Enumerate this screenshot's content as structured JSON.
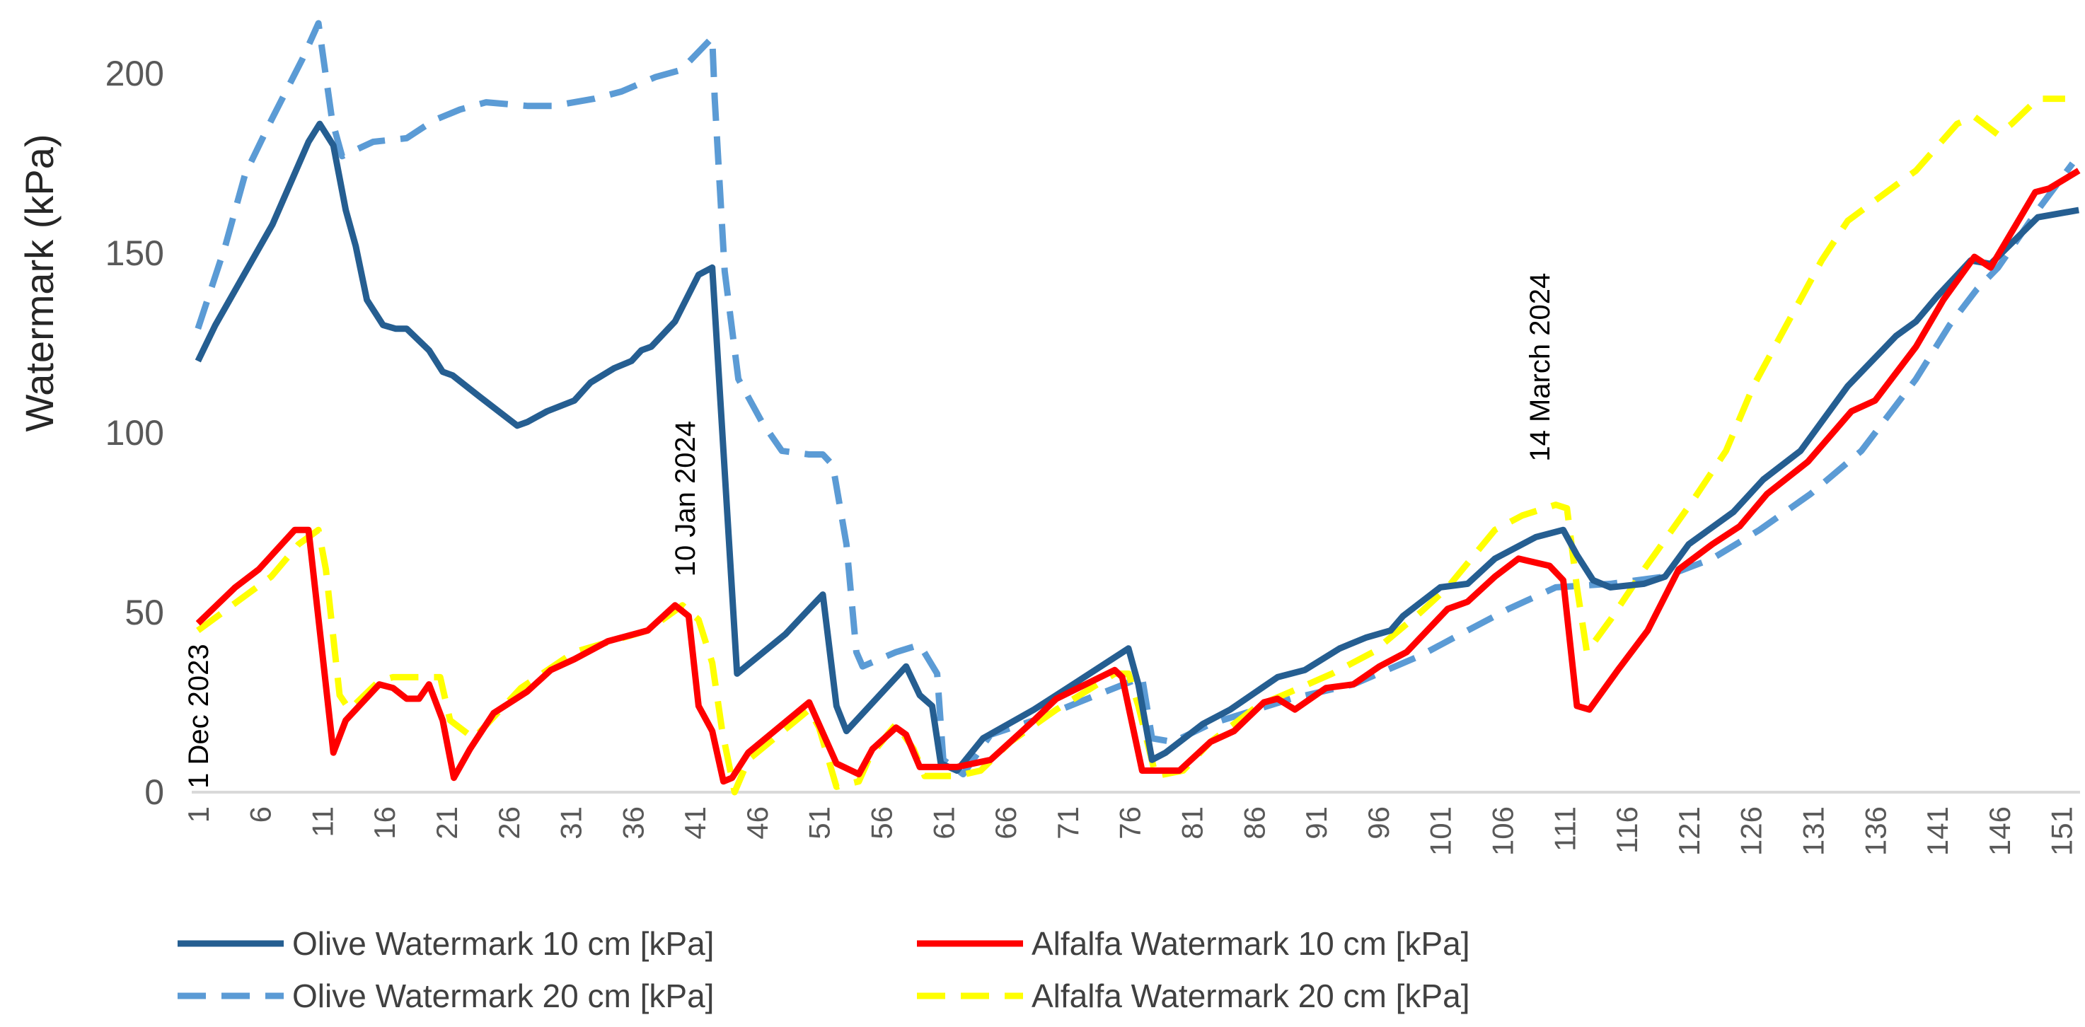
{
  "chart_data": {
    "type": "line",
    "title": "",
    "xlabel": "",
    "ylabel": "Watermark (kPa)",
    "xlim": [
      0.5,
      152.5
    ],
    "ylim": [
      0,
      218
    ],
    "yticks": [
      0,
      50,
      100,
      150,
      200
    ],
    "xticks": [
      1,
      6,
      11,
      16,
      21,
      26,
      31,
      36,
      41,
      46,
      51,
      56,
      61,
      66,
      71,
      76,
      81,
      86,
      91,
      96,
      101,
      106,
      111,
      116,
      121,
      126,
      131,
      136,
      141,
      146,
      151
    ],
    "grid": false,
    "legend_position": "bottom",
    "annotations": [
      {
        "text": "1 Dec 2023",
        "x": 1,
        "y": 1
      },
      {
        "text": "10 Jan 2024",
        "x": 40.2,
        "y": 60
      },
      {
        "text": "14 March 2024",
        "x": 109,
        "y": 92
      }
    ],
    "series": [
      {
        "name": "Olive Watermark 10 cm [kPa]",
        "color": "#255E91",
        "dash": "solid",
        "points": [
          [
            1,
            120
          ],
          [
            2.4,
            130
          ],
          [
            7,
            158
          ],
          [
            9.9,
            181
          ],
          [
            10.8,
            186
          ],
          [
            11.9,
            180
          ],
          [
            12.9,
            162
          ],
          [
            13.7,
            152
          ],
          [
            14.6,
            137
          ],
          [
            15.9,
            130
          ],
          [
            16.9,
            129
          ],
          [
            17.8,
            129
          ],
          [
            19.6,
            123
          ],
          [
            20.7,
            117
          ],
          [
            21.5,
            116
          ],
          [
            23.7,
            110
          ],
          [
            26.7,
            102
          ],
          [
            27.5,
            103
          ],
          [
            29.1,
            106
          ],
          [
            31.3,
            109
          ],
          [
            32.6,
            114
          ],
          [
            34.5,
            118
          ],
          [
            35.9,
            120
          ],
          [
            36.7,
            123
          ],
          [
            37.5,
            124
          ],
          [
            39.4,
            131
          ],
          [
            41.3,
            144
          ],
          [
            42.4,
            146
          ],
          [
            44.4,
            33
          ],
          [
            48.3,
            44
          ],
          [
            50.2,
            51
          ],
          [
            51.3,
            55
          ],
          [
            52.4,
            24
          ],
          [
            53.2,
            17
          ],
          [
            58,
            35
          ],
          [
            59.1,
            27
          ],
          [
            60.1,
            24
          ],
          [
            60.8,
            8
          ],
          [
            62.1,
            6
          ],
          [
            64.2,
            15
          ],
          [
            68.3,
            23
          ],
          [
            71,
            29
          ],
          [
            75.9,
            40
          ],
          [
            76.7,
            30
          ],
          [
            77.8,
            9
          ],
          [
            78.9,
            11
          ],
          [
            81.9,
            19
          ],
          [
            84.1,
            23
          ],
          [
            87.9,
            32
          ],
          [
            90.1,
            34
          ],
          [
            92.9,
            40
          ],
          [
            95,
            43
          ],
          [
            97,
            45
          ],
          [
            98,
            49
          ],
          [
            101,
            57
          ],
          [
            103.2,
            58
          ],
          [
            105.4,
            65
          ],
          [
            108.7,
            71
          ],
          [
            110.9,
            73
          ],
          [
            112,
            66
          ],
          [
            113.3,
            59
          ],
          [
            114.7,
            57
          ],
          [
            117.4,
            58
          ],
          [
            119.1,
            60
          ],
          [
            121,
            69
          ],
          [
            124.6,
            78
          ],
          [
            127,
            87
          ],
          [
            130,
            95
          ],
          [
            133.8,
            113
          ],
          [
            137.7,
            127
          ],
          [
            139.3,
            131
          ],
          [
            141,
            138
          ],
          [
            143.7,
            148
          ],
          [
            145.3,
            147
          ],
          [
            149.1,
            160
          ],
          [
            152.4,
            162
          ]
        ]
      },
      {
        "name": "Alfalfa Watermark 10 cm  [kPa]",
        "color": "#FF0000",
        "dash": "solid",
        "points": [
          [
            1,
            47
          ],
          [
            4,
            57
          ],
          [
            5.9,
            62
          ],
          [
            8.8,
            73
          ],
          [
            9.9,
            73
          ],
          [
            11,
            39
          ],
          [
            11.9,
            11
          ],
          [
            12.9,
            20
          ],
          [
            15.6,
            30
          ],
          [
            16.7,
            29
          ],
          [
            17.8,
            26
          ],
          [
            18.8,
            26
          ],
          [
            19.6,
            30
          ],
          [
            20.7,
            20
          ],
          [
            21.6,
            4
          ],
          [
            22.9,
            12
          ],
          [
            24.8,
            22
          ],
          [
            27.5,
            28
          ],
          [
            29.4,
            34
          ],
          [
            31.3,
            37
          ],
          [
            34,
            42
          ],
          [
            37.2,
            45
          ],
          [
            39.4,
            52
          ],
          [
            40.5,
            49
          ],
          [
            41.3,
            24
          ],
          [
            42.4,
            17
          ],
          [
            43.3,
            3
          ],
          [
            44,
            4
          ],
          [
            45.3,
            11
          ],
          [
            50.2,
            25
          ],
          [
            52.4,
            8
          ],
          [
            54.2,
            5
          ],
          [
            55.3,
            12
          ],
          [
            57.2,
            18
          ],
          [
            58,
            16
          ],
          [
            59.1,
            7
          ],
          [
            62.1,
            7
          ],
          [
            64.8,
            9
          ],
          [
            68.3,
            20
          ],
          [
            70.1,
            26
          ],
          [
            74.8,
            34
          ],
          [
            75.4,
            32
          ],
          [
            77,
            6
          ],
          [
            80,
            6
          ],
          [
            82.5,
            14
          ],
          [
            84.4,
            17
          ],
          [
            86.8,
            25
          ],
          [
            87.9,
            26
          ],
          [
            89.3,
            23
          ],
          [
            91.8,
            29
          ],
          [
            94,
            30
          ],
          [
            96.1,
            35
          ],
          [
            98.3,
            39
          ],
          [
            101.6,
            51
          ],
          [
            103.2,
            53
          ],
          [
            105.4,
            60
          ],
          [
            107.3,
            65
          ],
          [
            109.8,
            63
          ],
          [
            110.9,
            59
          ],
          [
            112,
            24
          ],
          [
            113,
            23
          ],
          [
            115.3,
            34
          ],
          [
            117.7,
            45
          ],
          [
            120.2,
            62
          ],
          [
            122.9,
            69
          ],
          [
            125.1,
            74
          ],
          [
            127.3,
            83
          ],
          [
            130.6,
            92
          ],
          [
            134.1,
            106
          ],
          [
            136,
            109
          ],
          [
            138.2,
            119
          ],
          [
            139.3,
            124
          ],
          [
            141.5,
            137
          ],
          [
            144,
            149
          ],
          [
            145.3,
            146
          ],
          [
            148.9,
            167
          ],
          [
            150,
            168
          ],
          [
            152.4,
            173
          ]
        ]
      },
      {
        "name": "Olive Watermark 20 cm [kPa]",
        "color": "#5B9BD5",
        "dash": "dashed",
        "points": [
          [
            1,
            129
          ],
          [
            3.2,
            152
          ],
          [
            4.8,
            172
          ],
          [
            6.9,
            187
          ],
          [
            9.4,
            204
          ],
          [
            10.7,
            214
          ],
          [
            11.8,
            187
          ],
          [
            12.6,
            177
          ],
          [
            15.1,
            181
          ],
          [
            17.8,
            182
          ],
          [
            20,
            187
          ],
          [
            22.1,
            190
          ],
          [
            24.2,
            192
          ],
          [
            27.5,
            191
          ],
          [
            29.6,
            191
          ],
          [
            32.9,
            193
          ],
          [
            35.1,
            195
          ],
          [
            37.8,
            199
          ],
          [
            39.9,
            201
          ],
          [
            42.4,
            210
          ],
          [
            42.6,
            193
          ],
          [
            43.4,
            145
          ],
          [
            44.5,
            115
          ],
          [
            46.4,
            103
          ],
          [
            48,
            95
          ],
          [
            50.2,
            94
          ],
          [
            51.3,
            94
          ],
          [
            52.1,
            91
          ],
          [
            53.2,
            69
          ],
          [
            54,
            39
          ],
          [
            54.5,
            35
          ],
          [
            57.2,
            39
          ],
          [
            59.1,
            41
          ],
          [
            60.5,
            33
          ],
          [
            61,
            9
          ],
          [
            62.6,
            5
          ],
          [
            64.8,
            16
          ],
          [
            68.3,
            20
          ],
          [
            72.6,
            26
          ],
          [
            77,
            32
          ],
          [
            77.8,
            15
          ],
          [
            79.5,
            14
          ],
          [
            82.5,
            19
          ],
          [
            89,
            26
          ],
          [
            94,
            30
          ],
          [
            99.4,
            38
          ],
          [
            102.1,
            43
          ],
          [
            106.5,
            51
          ],
          [
            110.3,
            57
          ],
          [
            114.7,
            58
          ],
          [
            119.1,
            60
          ],
          [
            122.9,
            65
          ],
          [
            126.7,
            73
          ],
          [
            130.8,
            83
          ],
          [
            134.9,
            95
          ],
          [
            139.3,
            115
          ],
          [
            142,
            130
          ],
          [
            144.2,
            140
          ],
          [
            145.9,
            146
          ],
          [
            149.1,
            162
          ],
          [
            151.9,
            175
          ]
        ]
      },
      {
        "name": "Alfalfa Watermark  20 cm  [kPa]",
        "color": "#FFFF00",
        "dash": "dashed",
        "points": [
          [
            1,
            45
          ],
          [
            6.9,
            60
          ],
          [
            9.1,
            69
          ],
          [
            10.7,
            73
          ],
          [
            11.3,
            62
          ],
          [
            12.4,
            27
          ],
          [
            13.2,
            23
          ],
          [
            15.6,
            31
          ],
          [
            16.7,
            32
          ],
          [
            18.3,
            32
          ],
          [
            20.5,
            32
          ],
          [
            21.3,
            20
          ],
          [
            23.2,
            15
          ],
          [
            27,
            29
          ],
          [
            31.3,
            39
          ],
          [
            37.2,
            45
          ],
          [
            40,
            52
          ],
          [
            41.3,
            48
          ],
          [
            42.4,
            36
          ],
          [
            43.2,
            17
          ],
          [
            44.2,
            0
          ],
          [
            45.3,
            9
          ],
          [
            50.2,
            23
          ],
          [
            51,
            18
          ],
          [
            52.4,
            1.5
          ],
          [
            54.2,
            3
          ],
          [
            55.1,
            10
          ],
          [
            57.2,
            19
          ],
          [
            58.6,
            12
          ],
          [
            59.5,
            4.5
          ],
          [
            62.1,
            4.5
          ],
          [
            64,
            6
          ],
          [
            66.4,
            14
          ],
          [
            70.1,
            23
          ],
          [
            74.8,
            33
          ],
          [
            75.9,
            33
          ],
          [
            76.7,
            24
          ],
          [
            78.1,
            4.5
          ],
          [
            80.3,
            6
          ],
          [
            82.5,
            14
          ],
          [
            86.3,
            24
          ],
          [
            89,
            28
          ],
          [
            92.3,
            33
          ],
          [
            95.6,
            39
          ],
          [
            99.4,
            50
          ],
          [
            101.6,
            57
          ],
          [
            105.4,
            73
          ],
          [
            107.6,
            77
          ],
          [
            110.3,
            80
          ],
          [
            111.2,
            79
          ],
          [
            112,
            57
          ],
          [
            112.8,
            39
          ],
          [
            114.7,
            48
          ],
          [
            117.4,
            62
          ],
          [
            121.3,
            81
          ],
          [
            124,
            95
          ],
          [
            126.2,
            113
          ],
          [
            128.4,
            127
          ],
          [
            131.7,
            148
          ],
          [
            133.8,
            159
          ],
          [
            137.7,
            169
          ],
          [
            139.3,
            173
          ],
          [
            142.6,
            186
          ],
          [
            144,
            188
          ],
          [
            145.9,
            183
          ],
          [
            147,
            186
          ],
          [
            149.1,
            193
          ],
          [
            151.3,
            193
          ]
        ]
      }
    ]
  }
}
